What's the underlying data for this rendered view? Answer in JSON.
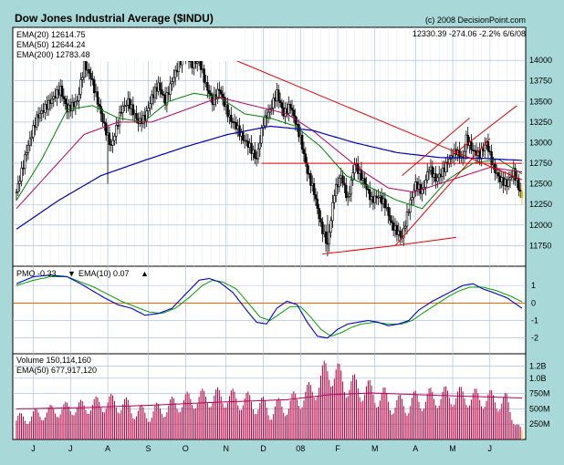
{
  "header": {
    "title": "Dow Jones Industrial Average ($INDU)",
    "copyright": "(c) 2008 DecisionPoint.com",
    "quote": "12330.39  -274.06  -2.2%  6/6/08"
  },
  "colors": {
    "background": "#a8d8d8",
    "panel": "#ffffff",
    "grid": "#9fb8d8",
    "ema20": "#008000",
    "ema50": "#b00060",
    "ema200": "#0000b0",
    "trendline": "#e00000",
    "pmo": "#0000d0",
    "pmo_signal": "#00a000",
    "zero_line": "#d06000",
    "volume": "#b00040",
    "candle": "#000000",
    "last_bar": "#e0c000"
  },
  "chart_data": [
    {
      "type": "line",
      "panel": "price",
      "title": "Dow Jones Industrial Average ($INDU)",
      "ylim": [
        11500,
        14400
      ],
      "y_ticks": [
        11750,
        12000,
        12250,
        12500,
        12750,
        13000,
        13250,
        13500,
        13750,
        14000
      ],
      "x_ticks": [
        "J",
        "J",
        "A",
        "S",
        "O",
        "N",
        "D",
        "08",
        "F",
        "M",
        "A",
        "M",
        "J"
      ],
      "legend": [
        {
          "label": "EMA(20) 12614.75",
          "color": "#008000"
        },
        {
          "label": "EMA(50) 12644.24",
          "color": "#b00060"
        },
        {
          "label": "EMA(200) 12783.48",
          "color": "#0000b0"
        }
      ],
      "series": [
        {
          "name": "EMA(20)",
          "anchors": [
            [
              0,
              12300
            ],
            [
              15,
              12800
            ],
            [
              30,
              13400
            ],
            [
              45,
              13450
            ],
            [
              60,
              13300
            ],
            [
              75,
              13250
            ],
            [
              90,
              13500
            ],
            [
              105,
              13600
            ],
            [
              120,
              13550
            ],
            [
              135,
              13350
            ],
            [
              150,
              13300
            ],
            [
              165,
              13200
            ],
            [
              180,
              12950
            ],
            [
              195,
              12600
            ],
            [
              210,
              12450
            ],
            [
              225,
              12300
            ],
            [
              240,
              12200
            ],
            [
              255,
              12550
            ],
            [
              270,
              12750
            ],
            [
              285,
              12800
            ],
            [
              299,
              12620
            ]
          ]
        },
        {
          "name": "EMA(50)",
          "anchors": [
            [
              0,
              12200
            ],
            [
              20,
              12650
            ],
            [
              40,
              13100
            ],
            [
              60,
              13250
            ],
            [
              80,
              13250
            ],
            [
              100,
              13400
            ],
            [
              120,
              13550
            ],
            [
              140,
              13450
            ],
            [
              160,
              13350
            ],
            [
              175,
              13150
            ],
            [
              190,
              12900
            ],
            [
              205,
              12650
            ],
            [
              220,
              12450
            ],
            [
              235,
              12400
            ],
            [
              250,
              12500
            ],
            [
              265,
              12600
            ],
            [
              280,
              12700
            ],
            [
              299,
              12645
            ]
          ]
        },
        {
          "name": "EMA(200)",
          "anchors": [
            [
              0,
              11950
            ],
            [
              25,
              12300
            ],
            [
              50,
              12600
            ],
            [
              75,
              12780
            ],
            [
              100,
              12950
            ],
            [
              125,
              13100
            ],
            [
              150,
              13200
            ],
            [
              175,
              13150
            ],
            [
              200,
              13000
            ],
            [
              225,
              12880
            ],
            [
              250,
              12820
            ],
            [
              275,
              12810
            ],
            [
              299,
              12785
            ]
          ]
        },
        {
          "name": "Close",
          "anchors": [
            [
              0,
              12400
            ],
            [
              6,
              12900
            ],
            [
              12,
              13300
            ],
            [
              20,
              13500
            ],
            [
              26,
              13650
            ],
            [
              30,
              13400
            ],
            [
              36,
              13500
            ],
            [
              40,
              13950
            ],
            [
              44,
              13800
            ],
            [
              48,
              13500
            ],
            [
              52,
              13200
            ],
            [
              56,
              12950
            ],
            [
              58,
              13100
            ],
            [
              62,
              13400
            ],
            [
              66,
              13500
            ],
            [
              72,
              13250
            ],
            [
              76,
              13300
            ],
            [
              80,
              13550
            ],
            [
              84,
              13700
            ],
            [
              88,
              13500
            ],
            [
              92,
              13750
            ],
            [
              96,
              13950
            ],
            [
              100,
              14100
            ],
            [
              104,
              13950
            ],
            [
              108,
              14000
            ],
            [
              112,
              13700
            ],
            [
              116,
              13500
            ],
            [
              120,
              13650
            ],
            [
              126,
              13300
            ],
            [
              130,
              13200
            ],
            [
              134,
              13050
            ],
            [
              138,
              12950
            ],
            [
              142,
              12800
            ],
            [
              146,
              13250
            ],
            [
              150,
              13400
            ],
            [
              154,
              13600
            ],
            [
              158,
              13350
            ],
            [
              162,
              13450
            ],
            [
              168,
              13050
            ],
            [
              172,
              12650
            ],
            [
              176,
              12400
            ],
            [
              180,
              12000
            ],
            [
              184,
              11750
            ],
            [
              188,
              12400
            ],
            [
              192,
              12600
            ],
            [
              196,
              12300
            ],
            [
              200,
              12750
            ],
            [
              206,
              12500
            ],
            [
              210,
              12300
            ],
            [
              214,
              12350
            ],
            [
              218,
              12250
            ],
            [
              222,
              12000
            ],
            [
              228,
              11850
            ],
            [
              232,
              12200
            ],
            [
              236,
              12500
            ],
            [
              240,
              12400
            ],
            [
              244,
              12700
            ],
            [
              248,
              12550
            ],
            [
              252,
              12650
            ],
            [
              256,
              12800
            ],
            [
              260,
              12900
            ],
            [
              264,
              12800
            ],
            [
              266,
              13050
            ],
            [
              270,
              12900
            ],
            [
              274,
              12850
            ],
            [
              278,
              13000
            ],
            [
              282,
              12700
            ],
            [
              286,
              12550
            ],
            [
              290,
              12500
            ],
            [
              294,
              12650
            ],
            [
              299,
              12330
            ]
          ]
        }
      ],
      "trendlines": [
        {
          "from": [
            112,
            14150
          ],
          "to": [
            299,
            12550
          ]
        },
        {
          "from": [
            145,
            12750
          ],
          "to": [
            299,
            12750
          ]
        },
        {
          "from": [
            181,
            11650
          ],
          "to": [
            224,
            11750
          ]
        },
        {
          "from": [
            224,
            11750
          ],
          "to": [
            260,
            11850
          ]
        },
        {
          "from": [
            224,
            11750
          ],
          "to": [
            280,
            13050
          ]
        },
        {
          "from": [
            228,
            12600
          ],
          "to": [
            268,
            13300
          ]
        },
        {
          "from": [
            258,
            12850
          ],
          "to": [
            296,
            13450
          ]
        }
      ]
    },
    {
      "type": "line",
      "panel": "pmo",
      "ylim": [
        -2.9,
        2.1
      ],
      "y_ticks": [
        -2,
        -1,
        0,
        1
      ],
      "legend": [
        {
          "label": "PMO -0.33",
          "color": "#0000d0"
        },
        {
          "label": "EMA(10) 0.07",
          "color": "#00a000"
        }
      ],
      "series": [
        {
          "name": "PMO",
          "anchors": [
            [
              0,
              1.1
            ],
            [
              10,
              1.5
            ],
            [
              20,
              1.6
            ],
            [
              30,
              1.5
            ],
            [
              38,
              1.1
            ],
            [
              45,
              0.7
            ],
            [
              52,
              0.3
            ],
            [
              60,
              -0.1
            ],
            [
              68,
              -0.3
            ],
            [
              76,
              -0.7
            ],
            [
              84,
              -0.6
            ],
            [
              92,
              -0.3
            ],
            [
              100,
              0.5
            ],
            [
              108,
              1.3
            ],
            [
              114,
              1.4
            ],
            [
              120,
              1.2
            ],
            [
              128,
              0.6
            ],
            [
              136,
              -0.4
            ],
            [
              142,
              -1.1
            ],
            [
              148,
              -1.2
            ],
            [
              154,
              -0.3
            ],
            [
              160,
              0.1
            ],
            [
              166,
              -0.1
            ],
            [
              172,
              -1.1
            ],
            [
              178,
              -1.9
            ],
            [
              184,
              -2.0
            ],
            [
              190,
              -1.5
            ],
            [
              196,
              -1.2
            ],
            [
              202,
              -1.1
            ],
            [
              208,
              -1.0
            ],
            [
              214,
              -1.1
            ],
            [
              220,
              -1.3
            ],
            [
              226,
              -1.2
            ],
            [
              232,
              -1.0
            ],
            [
              238,
              -0.4
            ],
            [
              246,
              0.1
            ],
            [
              252,
              0.4
            ],
            [
              258,
              0.7
            ],
            [
              264,
              1.0
            ],
            [
              270,
              1.1
            ],
            [
              276,
              0.8
            ],
            [
              282,
              0.6
            ],
            [
              290,
              0.3
            ],
            [
              299,
              -0.3
            ]
          ]
        },
        {
          "name": "EMA(10)",
          "anchors": [
            [
              0,
              1.0
            ],
            [
              10,
              1.3
            ],
            [
              20,
              1.5
            ],
            [
              30,
              1.5
            ],
            [
              38,
              1.2
            ],
            [
              46,
              0.9
            ],
            [
              54,
              0.5
            ],
            [
              62,
              0.1
            ],
            [
              70,
              -0.2
            ],
            [
              78,
              -0.5
            ],
            [
              86,
              -0.6
            ],
            [
              94,
              -0.3
            ],
            [
              102,
              0.3
            ],
            [
              110,
              1.0
            ],
            [
              116,
              1.3
            ],
            [
              122,
              1.2
            ],
            [
              130,
              0.8
            ],
            [
              138,
              -0.1
            ],
            [
              144,
              -0.8
            ],
            [
              150,
              -1.0
            ],
            [
              156,
              -0.6
            ],
            [
              162,
              -0.2
            ],
            [
              168,
              -0.2
            ],
            [
              174,
              -0.8
            ],
            [
              180,
              -1.5
            ],
            [
              186,
              -1.9
            ],
            [
              192,
              -1.7
            ],
            [
              198,
              -1.4
            ],
            [
              204,
              -1.2
            ],
            [
              212,
              -1.1
            ],
            [
              220,
              -1.2
            ],
            [
              228,
              -1.2
            ],
            [
              234,
              -1.0
            ],
            [
              240,
              -0.6
            ],
            [
              248,
              -0.1
            ],
            [
              256,
              0.4
            ],
            [
              262,
              0.7
            ],
            [
              268,
              0.9
            ],
            [
              276,
              0.9
            ],
            [
              284,
              0.7
            ],
            [
              292,
              0.4
            ],
            [
              299,
              0.07
            ]
          ]
        }
      ]
    },
    {
      "type": "bar",
      "panel": "volume",
      "ylim": [
        0,
        1400000000
      ],
      "y_ticks": [
        250000000,
        500000000,
        750000000,
        1000000000,
        1200000000
      ],
      "y_tick_labels": [
        "250M",
        "500M",
        "750M",
        "1.0B",
        "1.2B"
      ],
      "legend": [
        {
          "label": "Volume 150,114,160",
          "color": "#000000"
        },
        {
          "label": "EMA(50) 677,917,120",
          "color": "#b00060"
        }
      ],
      "volume_level_anchors": [
        [
          0,
          440
        ],
        [
          20,
          470
        ],
        [
          40,
          500
        ],
        [
          60,
          650
        ],
        [
          80,
          560
        ],
        [
          100,
          620
        ],
        [
          120,
          660
        ],
        [
          140,
          690
        ],
        [
          160,
          670
        ],
        [
          175,
          780
        ],
        [
          185,
          1100
        ],
        [
          195,
          860
        ],
        [
          210,
          820
        ],
        [
          230,
          760
        ],
        [
          250,
          700
        ],
        [
          270,
          650
        ],
        [
          290,
          680
        ],
        [
          299,
          150
        ]
      ],
      "ema50_anchors": [
        [
          0,
          500
        ],
        [
          40,
          520
        ],
        [
          80,
          560
        ],
        [
          120,
          610
        ],
        [
          160,
          650
        ],
        [
          185,
          730
        ],
        [
          210,
          760
        ],
        [
          250,
          720
        ],
        [
          299,
          678
        ]
      ]
    }
  ]
}
